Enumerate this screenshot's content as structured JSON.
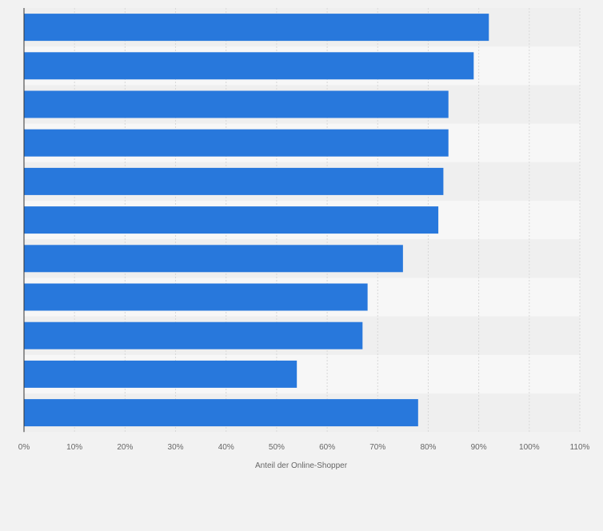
{
  "chart_data": {
    "type": "bar",
    "orientation": "horizontal",
    "categories": [
      "",
      "",
      "",
      "",
      "",
      "",
      "",
      "",
      "",
      "",
      ""
    ],
    "values": [
      92,
      89,
      84,
      84,
      83,
      82,
      75,
      68,
      67,
      54,
      78
    ],
    "xlabel": "Anteil der Online-Shopper",
    "ylabel": "",
    "xlim": [
      0,
      110
    ],
    "x_ticks": [
      "0%",
      "10%",
      "20%",
      "30%",
      "40%",
      "50%",
      "60%",
      "70%",
      "80%",
      "90%",
      "100%",
      "110%"
    ],
    "grid": true,
    "legend": "none"
  },
  "colors": {
    "bar": "#2878dc",
    "background": "#f2f2f2",
    "band_light": "#f7f7f7",
    "band_dark": "#efefef",
    "grid": "#d8d8d8",
    "axis": "#333333",
    "tick_text": "#666666"
  }
}
